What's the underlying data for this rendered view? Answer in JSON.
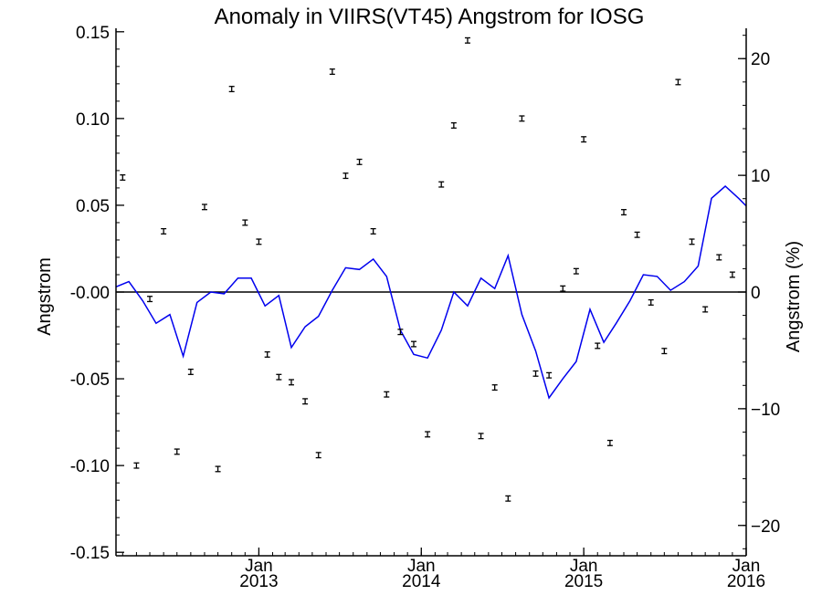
{
  "chart_data": {
    "type": "line",
    "title": "Anomaly in VIIRS(VT45) Angstrom for IOSG",
    "ylabel_left": "Angstrom",
    "ylabel_right": "Angstrom (%)",
    "ylim_left": [
      -0.152,
      0.152
    ],
    "ylim_right": [
      -22.6,
      22.6
    ],
    "left_ticks": [
      0.15,
      0.1,
      0.05,
      0.0,
      -0.05,
      -0.1,
      -0.15
    ],
    "left_tick_labels": [
      "0.15",
      "0.10",
      "0.05",
      "-0.00",
      "-0.05",
      "-0.10",
      "-0.15"
    ],
    "right_ticks": [
      20,
      10,
      0,
      -10,
      -20
    ],
    "right_tick_labels": [
      "20",
      "10",
      "0",
      "−10",
      "−20"
    ],
    "x_range": [
      "2012-02-15",
      "2016-01-01"
    ],
    "x_ticks": [
      {
        "date": "2013-01-01",
        "month": "Jan",
        "year": "2013"
      },
      {
        "date": "2014-01-01",
        "month": "Jan",
        "year": "2014"
      },
      {
        "date": "2015-01-01",
        "month": "Jan",
        "year": "2015"
      },
      {
        "date": "2016-01-01",
        "month": "Jan",
        "year": "2016"
      }
    ],
    "reference_line": 0,
    "series": [
      {
        "kind": "line",
        "color": "#0000ee",
        "x": [
          "2012-02-15",
          "2012-03-15",
          "2012-04-15",
          "2012-05-15",
          "2012-06-15",
          "2012-07-15",
          "2012-08-15",
          "2012-09-15",
          "2012-10-15",
          "2012-11-15",
          "2012-12-15",
          "2013-01-15",
          "2013-02-15",
          "2013-03-15",
          "2013-04-15",
          "2013-05-15",
          "2013-06-15",
          "2013-07-15",
          "2013-08-15",
          "2013-09-15",
          "2013-10-15",
          "2013-11-15",
          "2013-12-15",
          "2014-01-15",
          "2014-02-15",
          "2014-03-15",
          "2014-04-15",
          "2014-05-15",
          "2014-06-15",
          "2014-07-15",
          "2014-08-15",
          "2014-09-15",
          "2014-10-15",
          "2014-11-15",
          "2014-12-15",
          "2015-01-15",
          "2015-02-15",
          "2015-03-15",
          "2015-04-15",
          "2015-05-15",
          "2015-06-15",
          "2015-07-15",
          "2015-08-15",
          "2015-09-15",
          "2015-10-15",
          "2015-11-15",
          "2015-12-15",
          "2016-01-15"
        ],
        "y": [
          0.003,
          0.006,
          -0.005,
          -0.018,
          -0.013,
          -0.037,
          -0.006,
          0.0,
          -0.001,
          0.008,
          0.008,
          -0.008,
          -0.002,
          -0.032,
          -0.02,
          -0.014,
          0.001,
          0.014,
          0.013,
          0.019,
          0.009,
          -0.022,
          -0.036,
          -0.038,
          -0.022,
          0.0,
          -0.008,
          0.008,
          0.002,
          0.021,
          -0.013,
          -0.034,
          -0.061,
          -0.05,
          -0.04,
          -0.01,
          -0.029,
          -0.018,
          -0.005,
          0.01,
          0.009,
          0.001,
          0.006,
          0.015,
          0.054,
          0.061,
          0.054,
          0.046
        ]
      },
      {
        "kind": "errorbar",
        "color": "#000000",
        "x": [
          "2012-03-01",
          "2012-04-01",
          "2012-05-01",
          "2012-06-01",
          "2012-07-01",
          "2012-08-01",
          "2012-09-01",
          "2012-10-01",
          "2012-11-01",
          "2012-12-01",
          "2013-01-01",
          "2013-01-20",
          "2013-02-15",
          "2013-03-15",
          "2013-04-15",
          "2013-05-15",
          "2013-06-15",
          "2013-07-15",
          "2013-08-15",
          "2013-09-15",
          "2013-10-15",
          "2013-11-15",
          "2013-12-15",
          "2014-01-15",
          "2014-02-15",
          "2014-03-15",
          "2014-04-15",
          "2014-05-15",
          "2014-06-15",
          "2014-07-15",
          "2014-08-15",
          "2014-09-15",
          "2014-10-15",
          "2014-11-15",
          "2014-12-15",
          "2015-01-01",
          "2015-02-01",
          "2015-03-01",
          "2015-04-01",
          "2015-05-01",
          "2015-06-01",
          "2015-07-01",
          "2015-08-01",
          "2015-09-01",
          "2015-10-01",
          "2015-11-01",
          "2015-12-01"
        ],
        "y": [
          0.066,
          -0.1,
          -0.004,
          0.035,
          -0.092,
          -0.046,
          0.049,
          -0.102,
          0.117,
          0.04,
          0.029,
          -0.036,
          -0.049,
          -0.052,
          -0.063,
          -0.094,
          0.127,
          0.067,
          0.075,
          0.035,
          -0.059,
          -0.023,
          -0.03,
          -0.082,
          0.062,
          0.096,
          0.145,
          -0.083,
          -0.055,
          -0.119,
          0.1,
          -0.047,
          -0.048,
          0.002,
          0.012,
          0.088,
          -0.031,
          -0.087,
          0.046,
          0.033,
          -0.006,
          -0.034,
          0.121,
          0.029,
          -0.01,
          0.02,
          0.01
        ],
        "err": 0.0015
      }
    ]
  }
}
